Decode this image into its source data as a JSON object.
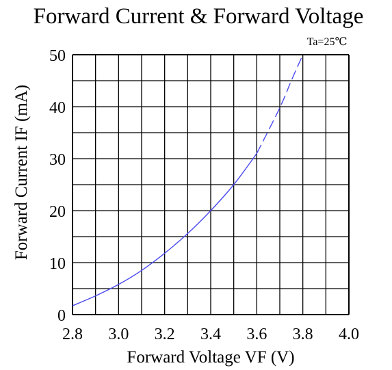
{
  "chart_data": {
    "type": "line",
    "title": "Forward Current & Forward Voltage",
    "annotation": "Ta=25℃",
    "xlabel": "Forward Voltage  VF (V)",
    "ylabel": "Forward Current IF (mA)",
    "xlim": [
      2.8,
      4.0
    ],
    "ylim": [
      0,
      50
    ],
    "x_ticks": [
      "2.8",
      "3.0",
      "3.2",
      "3.4",
      "3.6",
      "3.8",
      "4.0"
    ],
    "y_ticks": [
      "0",
      "10",
      "20",
      "30",
      "40",
      "50"
    ],
    "grid": true,
    "series_color": "#4a4af0",
    "series": [
      {
        "solid": [
          [
            2.8,
            1.7
          ],
          [
            2.9,
            3.6
          ],
          [
            3.0,
            5.8
          ],
          [
            3.1,
            8.5
          ],
          [
            3.2,
            11.8
          ],
          [
            3.3,
            15.6
          ],
          [
            3.4,
            20.0
          ],
          [
            3.5,
            25.0
          ],
          [
            3.6,
            31.0
          ]
        ],
        "dashed": [
          [
            3.6,
            31.0
          ],
          [
            3.7,
            39.8
          ],
          [
            3.75,
            45.0
          ],
          [
            3.8,
            50.0
          ]
        ]
      }
    ]
  }
}
